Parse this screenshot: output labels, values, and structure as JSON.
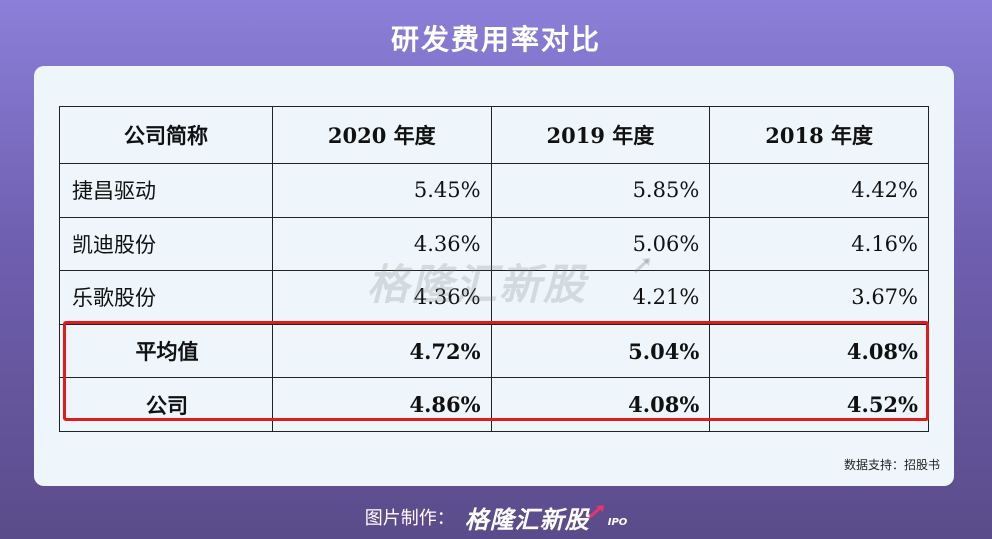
{
  "title": "研发费用率对比",
  "table": {
    "headers": [
      "公司简称",
      "2020 年度",
      "2019 年度",
      "2018 年度"
    ],
    "rows": [
      {
        "name": "捷昌驱动",
        "v2020": "5.45%",
        "v2019": "5.85%",
        "v2018": "4.42%"
      },
      {
        "name": "凯迪股份",
        "v2020": "4.36%",
        "v2019": "5.06%",
        "v2018": "4.16%"
      },
      {
        "name": "乐歌股份",
        "v2020": "4.36%",
        "v2019": "4.21%",
        "v2018": "3.67%"
      },
      {
        "name": "平均值",
        "v2020": "4.72%",
        "v2019": "5.04%",
        "v2018": "4.08%"
      },
      {
        "name": "公司",
        "v2020": "4.86%",
        "v2019": "4.08%",
        "v2018": "4.52%"
      }
    ]
  },
  "watermark": "格隆汇新股",
  "source": "数据支持：招股书",
  "footer": {
    "label": "图片制作：",
    "brand": "格隆汇新股",
    "ipo": "IPO"
  },
  "colors": {
    "highlight": "#e01b1b",
    "card_bg": "#eef6fb",
    "accent_arrow": "#e8336f"
  }
}
